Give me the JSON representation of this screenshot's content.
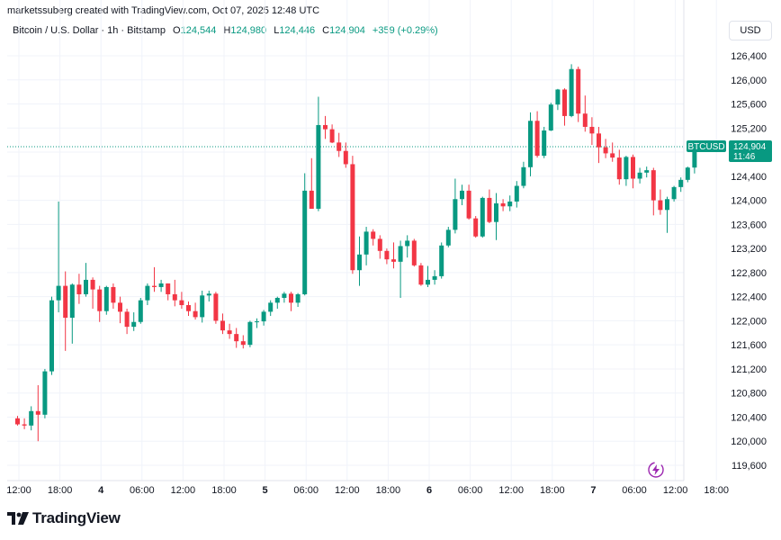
{
  "header": {
    "text": "marketssuberg created with TradingView.com, Oct 07, 2025 12:48 UTC"
  },
  "legend": {
    "symbol": "Bitcoin / U.S. Dollar · 1h · Bitstamp",
    "open_label": "O",
    "open": "124,544",
    "high_label": "H",
    "high": "124,980",
    "low_label": "L",
    "low": "124,446",
    "close_label": "C",
    "close": "124,904",
    "change": "+359 (+0.29%)"
  },
  "currency_button": "USD",
  "price_tag": {
    "symbol": "BTCUSD",
    "price": "124,904",
    "countdown": "11:46"
  },
  "brand": {
    "text": "TradingView"
  },
  "colors": {
    "up": "#089981",
    "down": "#f23645",
    "grid": "#f0f3fa",
    "text": "#131722"
  },
  "icons": {
    "brand": "tradingview-logo-icon",
    "flash": "flash-icon"
  },
  "chart_data": {
    "type": "candlestick",
    "y_tick_labels": [
      "126,400",
      "126,000",
      "125,600",
      "125,200",
      "124,800",
      "124,400",
      "124,000",
      "123,600",
      "123,200",
      "122,800",
      "122,400",
      "122,000",
      "121,600",
      "121,200",
      "120,800",
      "120,400",
      "120,000",
      "119,600"
    ],
    "y_ticks": [
      126400,
      126000,
      125600,
      125200,
      124800,
      124400,
      124000,
      123600,
      123200,
      122800,
      122400,
      122000,
      121600,
      121200,
      120800,
      120400,
      120000,
      119600
    ],
    "x_tick_labels": [
      "12:00",
      "18:00",
      "4",
      "06:00",
      "12:00",
      "18:00",
      "5",
      "06:00",
      "12:00",
      "18:00",
      "6",
      "06:00",
      "12:00",
      "18:00",
      "7",
      "06:00",
      "12:00",
      "18:00"
    ],
    "x_ticks_index": [
      0,
      6,
      12,
      18,
      24,
      30,
      36,
      42,
      48,
      54,
      60,
      66,
      72,
      78,
      84,
      90,
      96,
      102
    ],
    "ylim": [
      119400,
      126750
    ],
    "last_price": 124904,
    "candles": [
      [
        120380,
        120420,
        120260,
        120280
      ],
      [
        120280,
        120380,
        120200,
        120260
      ],
      [
        120260,
        120580,
        120180,
        120500
      ],
      [
        120500,
        120930,
        120000,
        120440
      ],
      [
        120440,
        121200,
        120380,
        121160
      ],
      [
        121160,
        122400,
        121100,
        122340
      ],
      [
        122340,
        123980,
        122140,
        122580
      ],
      [
        122580,
        122820,
        121500,
        122050
      ],
      [
        122050,
        122620,
        121620,
        122600
      ],
      [
        122600,
        122780,
        122280,
        122440
      ],
      [
        122440,
        122960,
        122400,
        122680
      ],
      [
        122680,
        122720,
        122200,
        122520
      ],
      [
        122520,
        122580,
        121980,
        122160
      ],
      [
        122160,
        122580,
        122100,
        122560
      ],
      [
        122560,
        122620,
        122200,
        122300
      ],
      [
        122300,
        122400,
        121960,
        122150
      ],
      [
        122150,
        122200,
        121780,
        121900
      ],
      [
        121900,
        122140,
        121830,
        121980
      ],
      [
        121980,
        122380,
        121950,
        122340
      ],
      [
        122340,
        122620,
        122260,
        122580
      ],
      [
        122580,
        122890,
        122480,
        122560
      ],
      [
        122560,
        122680,
        122480,
        122620
      ],
      [
        122620,
        122620,
        122340,
        122440
      ],
      [
        122440,
        122680,
        122240,
        122340
      ],
      [
        122340,
        122480,
        122200,
        122260
      ],
      [
        122260,
        122320,
        122080,
        122160
      ],
      [
        122160,
        122300,
        122020,
        122060
      ],
      [
        122060,
        122500,
        121970,
        122420
      ],
      [
        122420,
        122500,
        122320,
        122450
      ],
      [
        122450,
        122480,
        121950,
        122000
      ],
      [
        122000,
        122120,
        121780,
        121840
      ],
      [
        121840,
        121950,
        121700,
        121780
      ],
      [
        121780,
        121880,
        121550,
        121660
      ],
      [
        121660,
        121760,
        121540,
        121600
      ],
      [
        121600,
        122000,
        121560,
        121980
      ],
      [
        121980,
        122040,
        121880,
        121990
      ],
      [
        121990,
        122180,
        121920,
        122150
      ],
      [
        122150,
        122340,
        122080,
        122300
      ],
      [
        122300,
        122400,
        122200,
        122380
      ],
      [
        122380,
        122480,
        122300,
        122450
      ],
      [
        122450,
        122480,
        122160,
        122300
      ],
      [
        122300,
        122460,
        122230,
        122440
      ],
      [
        122440,
        124450,
        122420,
        124160
      ],
      [
        124160,
        124700,
        123870,
        123860
      ],
      [
        123860,
        125720,
        123820,
        125250
      ],
      [
        125250,
        125400,
        125020,
        125180
      ],
      [
        125180,
        125260,
        124950,
        124960
      ],
      [
        124960,
        125120,
        124720,
        124820
      ],
      [
        124820,
        124960,
        124540,
        124600
      ],
      [
        124600,
        124740,
        122780,
        122840
      ],
      [
        122840,
        123400,
        122580,
        123100
      ],
      [
        123100,
        123560,
        122920,
        123480
      ],
      [
        123480,
        123520,
        123250,
        123360
      ],
      [
        123360,
        123420,
        123030,
        123160
      ],
      [
        123160,
        123200,
        122940,
        123020
      ],
      [
        123020,
        123300,
        122870,
        122980
      ],
      [
        122980,
        123330,
        122380,
        123240
      ],
      [
        123240,
        123420,
        123050,
        123330
      ],
      [
        123330,
        123360,
        122900,
        122920
      ],
      [
        122920,
        122960,
        122580,
        122600
      ],
      [
        122600,
        122910,
        122560,
        122680
      ],
      [
        122680,
        122840,
        122600,
        122740
      ],
      [
        122740,
        123300,
        122700,
        123250
      ],
      [
        123250,
        123560,
        123220,
        123510
      ],
      [
        123510,
        124360,
        123450,
        124020
      ],
      [
        124020,
        124260,
        123920,
        124160
      ],
      [
        124160,
        124260,
        123680,
        123700
      ],
      [
        123700,
        123740,
        123380,
        123400
      ],
      [
        123400,
        124060,
        123380,
        124040
      ],
      [
        124040,
        124180,
        123620,
        123640
      ],
      [
        123640,
        124120,
        123340,
        123950
      ],
      [
        123950,
        124020,
        123820,
        123900
      ],
      [
        123900,
        124080,
        123820,
        123980
      ],
      [
        123980,
        124320,
        123880,
        124240
      ],
      [
        124240,
        124640,
        124200,
        124550
      ],
      [
        124550,
        125460,
        124400,
        125320
      ],
      [
        125320,
        125480,
        124710,
        124740
      ],
      [
        124740,
        125220,
        124700,
        125160
      ],
      [
        125160,
        125620,
        125150,
        125590
      ],
      [
        125590,
        125850,
        125500,
        125840
      ],
      [
        125840,
        125860,
        125240,
        125400
      ],
      [
        125400,
        126260,
        125380,
        126180
      ],
      [
        126180,
        126220,
        125300,
        125440
      ],
      [
        125440,
        125740,
        125140,
        125220
      ],
      [
        125220,
        125380,
        124920,
        125110
      ],
      [
        125110,
        125220,
        124620,
        124880
      ],
      [
        124880,
        125020,
        124700,
        124780
      ],
      [
        124780,
        124960,
        124640,
        124710
      ],
      [
        124710,
        124840,
        124260,
        124350
      ],
      [
        124350,
        124740,
        124240,
        124720
      ],
      [
        124720,
        124760,
        124200,
        124360
      ],
      [
        124360,
        124540,
        124280,
        124460
      ],
      [
        124460,
        124560,
        124380,
        124500
      ],
      [
        124500,
        124540,
        123750,
        124000
      ],
      [
        124000,
        124180,
        123760,
        123840
      ],
      [
        123840,
        124060,
        123460,
        124020
      ],
      [
        124020,
        124240,
        123980,
        124220
      ],
      [
        124220,
        124380,
        124140,
        124340
      ],
      [
        124340,
        124560,
        124300,
        124544
      ],
      [
        124544,
        124980,
        124446,
        124904
      ]
    ]
  }
}
